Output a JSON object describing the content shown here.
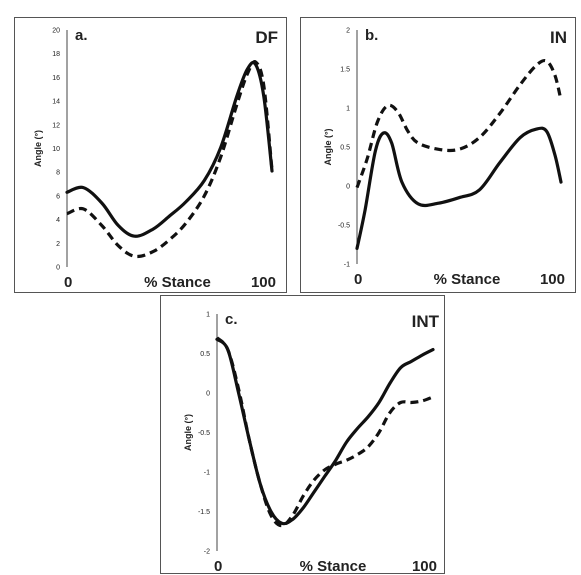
{
  "chart_data": [
    {
      "type": "line",
      "panel_label": "a.",
      "title": "DF",
      "ylabel": "Angle (°)",
      "xlabel": "% Stance",
      "x_tick_labels": [
        "0",
        "100"
      ],
      "xlim": [
        0,
        100
      ],
      "ylim": [
        0,
        20
      ],
      "yticks": [
        "0",
        "2",
        "4",
        "6",
        "8",
        "10",
        "12",
        "14",
        "16",
        "18",
        "20"
      ],
      "series": [
        {
          "style": "solid",
          "x": [
            0,
            8,
            17,
            25,
            33,
            42,
            50,
            58,
            67,
            75,
            83,
            88,
            92,
            96,
            100
          ],
          "y": [
            6.3,
            6.7,
            5.4,
            3.5,
            2.6,
            3.2,
            4.3,
            5.5,
            7.3,
            10.1,
            14.5,
            16.7,
            17.1,
            14.4,
            8.1
          ]
        },
        {
          "style": "dashed",
          "x": [
            0,
            8,
            17,
            25,
            33,
            42,
            50,
            58,
            67,
            75,
            83,
            88,
            92,
            96,
            100
          ],
          "y": [
            4.5,
            4.9,
            3.5,
            1.8,
            0.9,
            1.3,
            2.3,
            3.7,
            6.0,
            9.3,
            13.8,
            16.3,
            17.3,
            15.3,
            8.2
          ]
        }
      ]
    },
    {
      "type": "line",
      "panel_label": "b.",
      "title": "IN",
      "ylabel": "Angle (°)",
      "xlabel": "% Stance",
      "x_tick_labels": [
        "0",
        "100"
      ],
      "xlim": [
        0,
        100
      ],
      "ylim": [
        -1,
        2
      ],
      "yticks": [
        "-1",
        "-0.5",
        "0",
        "0.5",
        "1",
        "1.5",
        "2"
      ],
      "series": [
        {
          "style": "solid",
          "x": [
            0,
            4,
            9,
            13,
            17,
            22,
            30,
            40,
            50,
            60,
            70,
            80,
            88,
            93,
            97,
            100
          ],
          "y": [
            -0.8,
            -0.3,
            0.45,
            0.68,
            0.55,
            0.05,
            -0.23,
            -0.22,
            -0.15,
            -0.05,
            0.3,
            0.62,
            0.73,
            0.7,
            0.4,
            0.05
          ]
        },
        {
          "style": "dashed",
          "x": [
            0,
            5,
            10,
            15,
            20,
            25,
            30,
            40,
            50,
            60,
            70,
            80,
            88,
            93,
            97,
            100
          ],
          "y": [
            -0.02,
            0.35,
            0.82,
            1.03,
            0.95,
            0.7,
            0.55,
            0.47,
            0.47,
            0.62,
            0.93,
            1.3,
            1.55,
            1.6,
            1.42,
            1.1
          ]
        }
      ]
    },
    {
      "type": "line",
      "panel_label": "c.",
      "title": "INT",
      "ylabel": "Angle (°)",
      "xlabel": "% Stance",
      "x_tick_labels": [
        "0",
        "100"
      ],
      "xlim": [
        0,
        100
      ],
      "ylim": [
        -2,
        1
      ],
      "yticks": [
        "-2",
        "-1.5",
        "-1",
        "-0.5",
        "0",
        "0.5",
        "1"
      ],
      "series": [
        {
          "style": "solid",
          "x": [
            0,
            5,
            10,
            15,
            20,
            25,
            30,
            35,
            40,
            45,
            50,
            55,
            60,
            65,
            70,
            75,
            80,
            85,
            90,
            95,
            100
          ],
          "y": [
            0.68,
            0.55,
            0.0,
            -0.6,
            -1.15,
            -1.5,
            -1.65,
            -1.6,
            -1.45,
            -1.25,
            -1.05,
            -0.85,
            -0.62,
            -0.45,
            -0.3,
            -0.12,
            0.12,
            0.32,
            0.4,
            0.48,
            0.55
          ]
        },
        {
          "style": "dashed",
          "x": [
            0,
            5,
            10,
            15,
            20,
            25,
            30,
            35,
            40,
            45,
            50,
            55,
            60,
            65,
            70,
            75,
            80,
            85,
            90,
            95,
            100
          ],
          "y": [
            0.7,
            0.55,
            0.05,
            -0.6,
            -1.15,
            -1.55,
            -1.68,
            -1.55,
            -1.3,
            -1.1,
            -0.97,
            -0.9,
            -0.85,
            -0.78,
            -0.68,
            -0.5,
            -0.25,
            -0.12,
            -0.12,
            -0.1,
            -0.05
          ]
        }
      ]
    }
  ]
}
